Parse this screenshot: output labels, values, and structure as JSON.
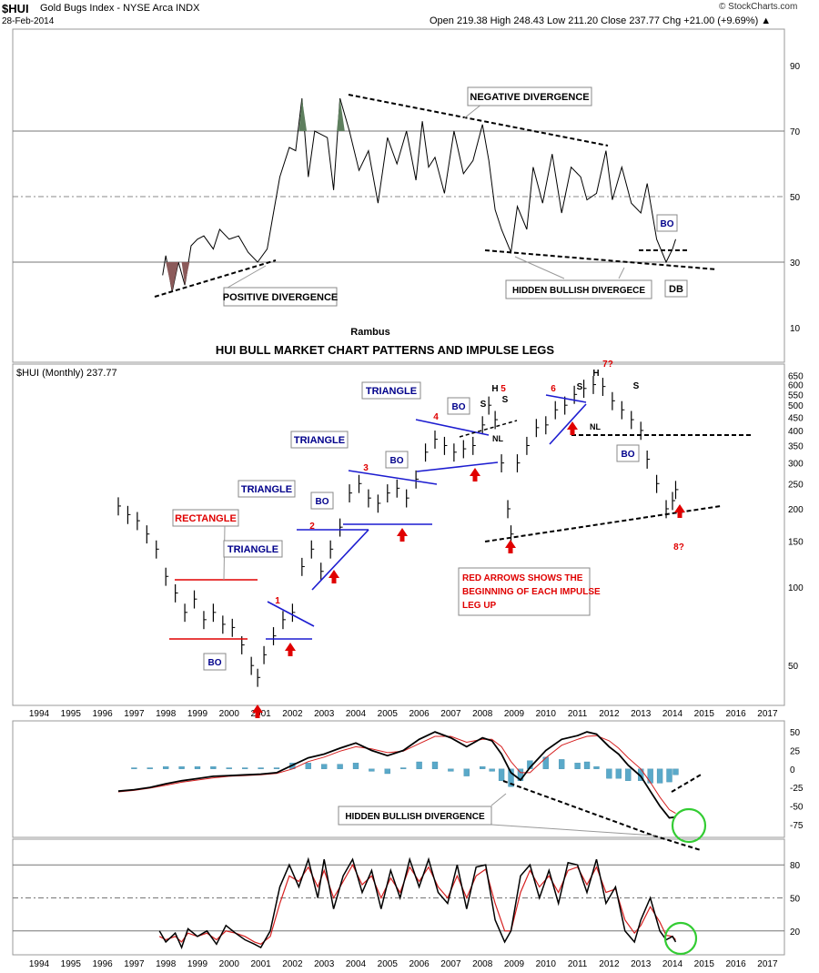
{
  "header": {
    "symbol": "$HUI",
    "name": "Gold Bugs Index - NYSE Arca INDX",
    "date": "28-Feb-2014",
    "ohlc": "Open 219.38  High 248.43  Low 211.20  Close 237.77  Chg +21.00 (+9.69%) ▲",
    "watermark": "© StockCharts.com"
  },
  "chart_data": [
    {
      "type": "line",
      "panel": "RSI (top)",
      "ylim": [
        0,
        100
      ],
      "yticks": [
        10,
        30,
        50,
        70,
        90
      ],
      "x": [
        1997.9,
        1998.0,
        1998.2,
        1998.4,
        1998.6,
        1998.8,
        1999.0,
        1999.2,
        1999.5,
        1999.7,
        2000.0,
        2000.3,
        2000.6,
        2000.9,
        2001.2,
        2001.4,
        2001.6,
        2001.9,
        2002.1,
        2002.3,
        2002.5,
        2002.7,
        2002.9,
        2003.1,
        2003.3,
        2003.5,
        2003.8,
        2004.1,
        2004.4,
        2004.7,
        2005.0,
        2005.3,
        2005.6,
        2005.9,
        2006.1,
        2006.3,
        2006.5,
        2006.8,
        2007.1,
        2007.4,
        2007.7,
        2008.0,
        2008.2,
        2008.4,
        2008.6,
        2008.9,
        2009.1,
        2009.4,
        2009.6,
        2009.9,
        2010.2,
        2010.5,
        2010.8,
        2011.1,
        2011.3,
        2011.6,
        2011.9,
        2012.1,
        2012.4,
        2012.7,
        2013.0,
        2013.2,
        2013.5,
        2013.8,
        2014.0,
        2014.1
      ],
      "values": [
        26,
        32,
        21,
        30,
        23,
        35,
        37,
        38,
        34,
        40,
        37,
        38,
        33,
        30,
        34,
        45,
        56,
        65,
        64,
        80,
        56,
        70,
        69,
        68,
        52,
        80,
        70,
        58,
        64,
        48,
        68,
        60,
        70,
        55,
        73,
        59,
        62,
        51,
        70,
        57,
        61,
        72,
        61,
        46,
        40,
        33,
        47,
        40,
        59,
        48,
        63,
        45,
        59,
        56,
        49,
        51,
        64,
        49,
        59,
        48,
        45,
        54,
        37,
        30,
        34,
        37
      ],
      "annotations": [
        "NEGATIVE DIVERGENCE",
        "POSITIVE DIVERGENCE",
        "HIDDEN BULLISH DIVERGECE",
        "BO",
        "DB",
        "Rambus"
      ]
    },
    {
      "type": "bar",
      "panel": "Price (monthly, log scale)",
      "title": "HUI BULL MARKET CHART PATTERNS AND IMPULSE LEGS",
      "legend": "$HUI (Monthly) 237.77",
      "ylim": [
        36,
        680
      ],
      "yticks": [
        50,
        100,
        150,
        200,
        250,
        300,
        350,
        400,
        450,
        500,
        550,
        600,
        650
      ],
      "xticks": [
        1994,
        1995,
        1996,
        1997,
        1998,
        1999,
        2000,
        2001,
        2002,
        2003,
        2004,
        2005,
        2006,
        2007,
        2008,
        2009,
        2010,
        2011,
        2012,
        2013,
        2014,
        2015,
        2016,
        2017
      ],
      "x": [
        1996.5,
        1996.8,
        1997.1,
        1997.4,
        1997.7,
        1998.0,
        1998.3,
        1998.6,
        1998.9,
        1999.2,
        1999.5,
        1999.8,
        2000.1,
        2000.4,
        2000.7,
        2000.9,
        2001.1,
        2001.4,
        2001.7,
        2002.0,
        2002.3,
        2002.6,
        2002.9,
        2003.2,
        2003.5,
        2003.8,
        2004.1,
        2004.4,
        2004.7,
        2005.0,
        2005.3,
        2005.6,
        2005.9,
        2006.2,
        2006.5,
        2006.8,
        2007.1,
        2007.4,
        2007.7,
        2008.0,
        2008.2,
        2008.4,
        2008.6,
        2008.8,
        2008.9,
        2009.1,
        2009.4,
        2009.7,
        2010.0,
        2010.3,
        2010.6,
        2010.9,
        2011.2,
        2011.5,
        2011.8,
        2012.1,
        2012.4,
        2012.7,
        2013.0,
        2013.2,
        2013.5,
        2013.8,
        2014.0,
        2014.1
      ],
      "values": [
        205,
        190,
        180,
        160,
        140,
        110,
        95,
        80,
        90,
        75,
        80,
        72,
        70,
        60,
        50,
        45,
        55,
        65,
        75,
        80,
        120,
        140,
        115,
        140,
        170,
        230,
        250,
        220,
        210,
        230,
        240,
        220,
        260,
        330,
        370,
        350,
        330,
        340,
        350,
        420,
        500,
        440,
        300,
        200,
        160,
        300,
        350,
        410,
        420,
        480,
        500,
        550,
        580,
        600,
        590,
        520,
        480,
        440,
        400,
        310,
        250,
        200,
        215,
        237
      ],
      "annotations": [
        "RECTANGLE",
        "TRIANGLE",
        "TRIANGLE",
        "TRIANGLE",
        "TRIANGLE",
        "BO",
        "BO",
        "BO",
        "BO",
        "BO",
        "1",
        "2",
        "3",
        "4",
        "5",
        "6",
        "7?",
        "8?",
        "H",
        "S",
        "S",
        "H",
        "S",
        "S",
        "NL",
        "NL",
        "RED ARROWS SHOWS THE BEGINNING OF EACH IMPULSE LEG UP"
      ]
    },
    {
      "type": "line",
      "panel": "MACD",
      "ylim": [
        -90,
        60
      ],
      "yticks": [
        -75,
        -50,
        -25,
        0,
        25,
        50
      ],
      "x": [
        1996.5,
        1997.0,
        1997.5,
        1998.0,
        1998.5,
        1999.0,
        1999.5,
        2000.0,
        2000.5,
        2001.0,
        2001.5,
        2002.0,
        2002.5,
        2003.0,
        2003.5,
        2004.0,
        2004.5,
        2005.0,
        2005.5,
        2006.0,
        2006.5,
        2007.0,
        2007.5,
        2008.0,
        2008.3,
        2008.6,
        2008.9,
        2009.2,
        2009.5,
        2010.0,
        2010.5,
        2011.0,
        2011.3,
        2011.6,
        2012.0,
        2012.3,
        2012.6,
        2013.0,
        2013.3,
        2013.6,
        2013.9,
        2014.1
      ],
      "values": [
        -30,
        -28,
        -25,
        -20,
        -16,
        -13,
        -10,
        -9,
        -8,
        -7,
        -5,
        5,
        15,
        20,
        28,
        35,
        25,
        18,
        25,
        40,
        50,
        42,
        30,
        42,
        38,
        20,
        -5,
        -15,
        2,
        25,
        40,
        45,
        50,
        47,
        30,
        20,
        5,
        -10,
        -30,
        -50,
        -66,
        -65
      ],
      "signal": [
        -31,
        -29,
        -26,
        -22,
        -18,
        -15,
        -12,
        -10,
        -9,
        -8,
        -6,
        0,
        10,
        16,
        24,
        30,
        27,
        22,
        24,
        34,
        44,
        44,
        36,
        40,
        40,
        30,
        10,
        -5,
        -5,
        15,
        32,
        40,
        44,
        45,
        38,
        28,
        15,
        0,
        -18,
        -38,
        -55,
        -60
      ],
      "annotations": [
        "HIDDEN BULLISH DIVERGENCE"
      ]
    },
    {
      "type": "line",
      "panel": "Stochastic",
      "ylim": [
        0,
        100
      ],
      "yticks": [
        20,
        50,
        80
      ],
      "x": [
        1997.8,
        1998.0,
        1998.3,
        1998.5,
        1998.7,
        1999.0,
        1999.3,
        1999.6,
        1999.9,
        2000.2,
        2000.5,
        2000.8,
        2001.0,
        2001.3,
        2001.6,
        2001.9,
        2002.2,
        2002.5,
        2002.8,
        2003.0,
        2003.3,
        2003.6,
        2003.9,
        2004.2,
        2004.5,
        2004.8,
        2005.1,
        2005.4,
        2005.7,
        2006.0,
        2006.3,
        2006.6,
        2006.9,
        2007.2,
        2007.5,
        2007.8,
        2008.1,
        2008.4,
        2008.7,
        2008.9,
        2009.2,
        2009.5,
        2009.8,
        2010.1,
        2010.4,
        2010.7,
        2011.0,
        2011.3,
        2011.6,
        2011.9,
        2012.2,
        2012.5,
        2012.8,
        2013.0,
        2013.3,
        2013.6,
        2013.8,
        2014.0,
        2014.1
      ],
      "values": [
        20,
        10,
        18,
        5,
        22,
        15,
        20,
        8,
        25,
        18,
        12,
        8,
        5,
        20,
        60,
        80,
        60,
        85,
        50,
        85,
        40,
        70,
        85,
        55,
        75,
        40,
        75,
        50,
        85,
        60,
        85,
        55,
        45,
        80,
        40,
        78,
        80,
        30,
        10,
        20,
        70,
        80,
        50,
        75,
        45,
        82,
        80,
        55,
        85,
        45,
        60,
        20,
        10,
        30,
        50,
        20,
        12,
        15,
        10
      ],
      "signal": [
        15,
        12,
        15,
        10,
        18,
        15,
        18,
        12,
        20,
        18,
        15,
        10,
        8,
        15,
        45,
        70,
        65,
        78,
        60,
        75,
        50,
        65,
        80,
        62,
        70,
        50,
        68,
        55,
        78,
        65,
        78,
        60,
        50,
        70,
        50,
        70,
        76,
        45,
        20,
        20,
        55,
        75,
        60,
        70,
        55,
        75,
        78,
        62,
        78,
        55,
        58,
        30,
        18,
        25,
        42,
        28,
        16,
        15,
        12
      ]
    }
  ]
}
